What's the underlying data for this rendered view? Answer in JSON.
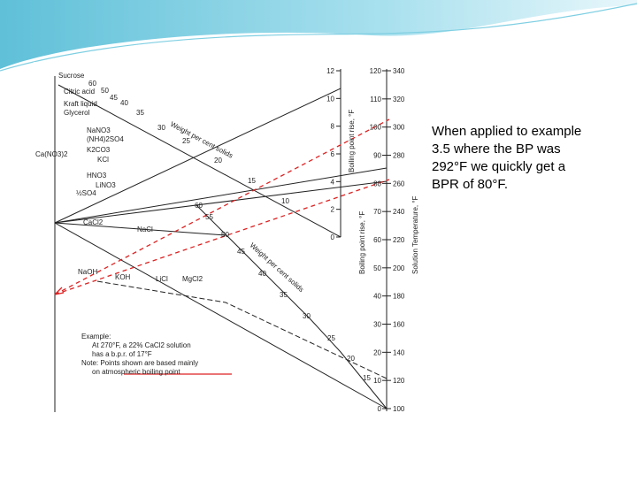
{
  "nomograph": {
    "compounds": [
      "Sucrose",
      "Citric acid",
      "Kraft liquid",
      "Glycerol",
      "NaNO3",
      "(NH4)2SO4",
      "Ca(NO3)2",
      "K2CO3",
      "KCl",
      "HNO3",
      "LiNO3",
      "½SO4",
      "CaCl2",
      "NaCl",
      "NaOH",
      "KOH",
      "LiCl",
      "MgCl2"
    ],
    "upper_solids": [
      "60",
      "50",
      "45",
      "40",
      "35",
      "30",
      "25",
      "20",
      "15",
      "10"
    ],
    "lower_solids": [
      "60",
      "55",
      "50",
      "45",
      "40",
      "35",
      "30",
      "25",
      "20",
      "15"
    ],
    "solids_title": "Weight per cent solids",
    "bpr_upper_ticks": [
      "12",
      "10",
      "8",
      "6",
      "4",
      "2",
      "0"
    ],
    "bpr_lower_ticks": [
      "120",
      "110",
      "100",
      "90",
      "80",
      "70",
      "60",
      "50",
      "40",
      "30",
      "20",
      "10",
      "0"
    ],
    "temp_ticks": [
      "340",
      "320",
      "300",
      "280",
      "260",
      "240",
      "220",
      "200",
      "180",
      "160",
      "140",
      "120",
      "100"
    ],
    "bpr_title": "Boiling point rise, °F",
    "temp_title": "Solution Temperature, °F",
    "example": [
      "Example:",
      "At 270°F, a 22% CaCl2 solution",
      "has a b.p.r. of 17°F",
      "Note: Points shown are based mainly",
      "on atmospheric boiling point"
    ]
  },
  "callout": {
    "lines": [
      "When applied to example",
      "3.5 where the BP was",
      "292°F we quickly get a",
      "BPR of 80°F."
    ]
  }
}
